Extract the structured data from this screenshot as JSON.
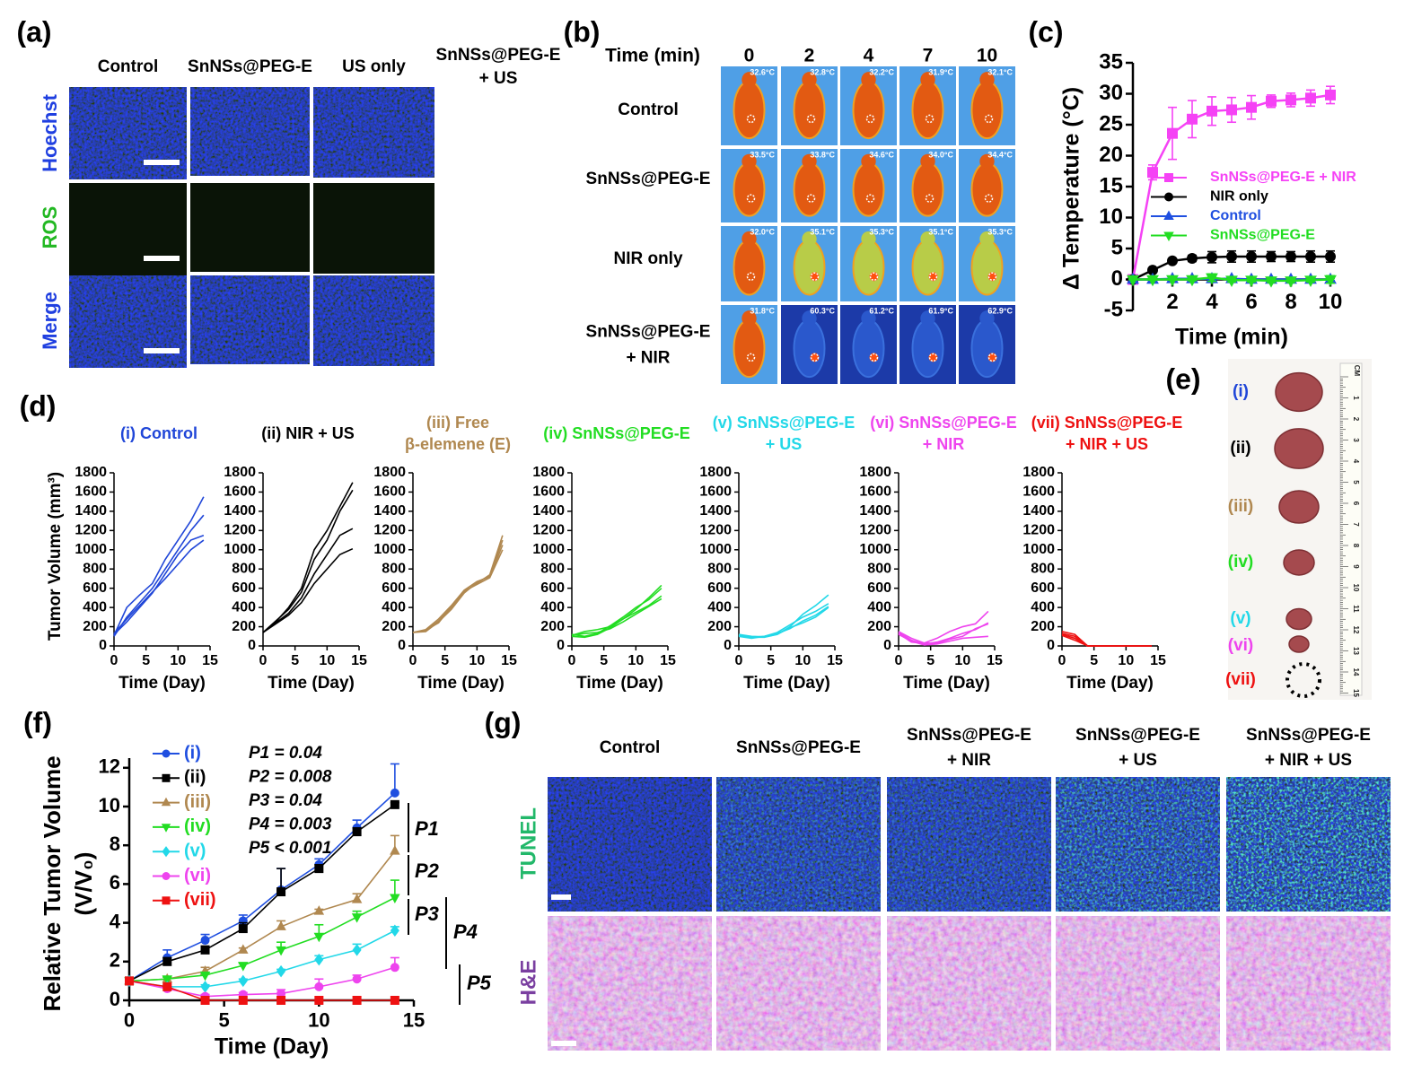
{
  "panel_labels": [
    "(a)",
    "(b)",
    "(c)",
    "(d)",
    "(e)",
    "(f)",
    "(g)"
  ],
  "panel_a": {
    "columns": [
      [
        "Control"
      ],
      [
        "SnNSs@PEG-E"
      ],
      [
        "US only"
      ],
      [
        "SnNSs@PEG-E",
        "+ US"
      ]
    ],
    "rows": [
      "Hoechst",
      "ROS",
      "Merge"
    ]
  },
  "panel_b": {
    "time_header": "Time (min)",
    "times": [
      "0",
      "2",
      "4",
      "7",
      "10"
    ],
    "rows": [
      [
        "Control"
      ],
      [
        "SnNSs@PEG-E"
      ],
      [
        "NIR only"
      ],
      [
        "SnNSs@PEG-E",
        "+ NIR"
      ]
    ],
    "temperatures": [
      [
        "32.6°C",
        "32.8°C",
        "32.2°C",
        "31.9°C",
        "32.1°C"
      ],
      [
        "33.5°C",
        "33.8°C",
        "34.6°C",
        "34.0°C",
        "34.4°C"
      ],
      [
        "32.0°C",
        "35.1°C",
        "35.3°C",
        "35.1°C",
        "35.3°C"
      ],
      [
        "31.8°C",
        "60.3°C",
        "61.2°C",
        "61.9°C",
        "62.9°C"
      ]
    ]
  },
  "panel_e": {
    "groups": [
      {
        "label": "(i)",
        "color": "#2046d8"
      },
      {
        "label": "(ii)",
        "color": "#000000"
      },
      {
        "label": "(iii)",
        "color": "#b08850"
      },
      {
        "label": "(iv)",
        "color": "#22dd22"
      },
      {
        "label": "(v)",
        "color": "#22d8e8"
      },
      {
        "label": "(vi)",
        "color": "#ee44ee"
      },
      {
        "label": "(vii)",
        "color": "#ee1111"
      }
    ],
    "ruler_unit": "CM",
    "ruler_marks": [
      "1",
      "2",
      "3",
      "4",
      "5",
      "6",
      "7",
      "8",
      "9",
      "10",
      "11",
      "12",
      "13",
      "14",
      "15"
    ]
  },
  "panel_g": {
    "columns": [
      [
        "Control"
      ],
      [
        "SnNSs@PEG-E"
      ],
      [
        "SnNSs@PEG-E",
        "+ NIR"
      ],
      [
        "SnNSs@PEG-E",
        "+ US"
      ],
      [
        "SnNSs@PEG-E",
        "+ NIR + US"
      ]
    ],
    "rows": [
      "TUNEL",
      "H&E"
    ]
  },
  "chart_data": [
    {
      "type": "line",
      "xlabel": "Time (min)",
      "ylabel": [
        "Δ Temperature (°C)"
      ],
      "x": [
        0,
        1,
        2,
        3,
        4,
        5,
        6,
        7,
        8,
        9,
        10
      ],
      "xlim": [
        0,
        10
      ],
      "xticks": [
        2,
        4,
        6,
        8,
        10
      ],
      "ylim": [
        -5,
        35
      ],
      "yticks": [
        -5,
        0,
        5,
        10,
        15,
        20,
        25,
        30,
        35
      ],
      "legend": "right",
      "error_bars": "both",
      "series": [
        {
          "name": "SnNSs@PEG-E + NIR",
          "color": "#f542f5",
          "marker": "square",
          "values": [
            0,
            17.3,
            23.6,
            25.9,
            27.2,
            27.4,
            27.8,
            28.8,
            29.0,
            29.3,
            29.8
          ],
          "errors": [
            0,
            1.2,
            4.2,
            3.0,
            2.3,
            2.0,
            1.9,
            1.0,
            1.1,
            1.3,
            1.4
          ]
        },
        {
          "name": "NIR only",
          "color": "#000000",
          "marker": "circle",
          "values": [
            0,
            1.5,
            3.0,
            3.4,
            3.6,
            3.7,
            3.7,
            3.7,
            3.7,
            3.7,
            3.7
          ],
          "errors": [
            0,
            0.2,
            0.3,
            0.5,
            0.9,
            0.9,
            0.9,
            0.8,
            0.8,
            0.9,
            0.9
          ]
        },
        {
          "name": "Control",
          "color": "#1f4fe0",
          "marker": "triangle",
          "values": [
            0,
            0,
            0.1,
            0.1,
            0.1,
            0.1,
            0,
            0,
            0,
            0,
            0
          ],
          "errors": [
            0,
            0.2,
            0.2,
            0.2,
            0.2,
            0.2,
            0.2,
            0.2,
            0.2,
            0.2,
            0.2
          ]
        },
        {
          "name": "SnNSs@PEG-E",
          "color": "#22dd22",
          "marker": "triangle-down",
          "values": [
            0,
            0,
            0,
            0,
            0.3,
            -0.1,
            -0.1,
            -0.2,
            -0.2,
            -0.1,
            0
          ],
          "errors": [
            0,
            0.1,
            0.1,
            0.2,
            0.6,
            0.3,
            0.3,
            0.3,
            0.3,
            0.3,
            0.6
          ]
        }
      ]
    },
    {
      "type": "line",
      "title": [
        "(i) Control"
      ],
      "color": "#2046d8",
      "xlabel": "Time (Day)",
      "ylabel": [
        "Tumor Volume (mm³)"
      ],
      "x": [
        0,
        2,
        4,
        6,
        8,
        10,
        12,
        14
      ],
      "xlim": [
        0,
        15
      ],
      "xticks": [
        0,
        5,
        10,
        15
      ],
      "ylim": [
        0,
        1800
      ],
      "yticks": [
        0,
        200,
        400,
        600,
        800,
        1000,
        1200,
        1400,
        1600,
        1800
      ],
      "series": [
        {
          "values": [
            110,
            400,
            530,
            650,
            900,
            1100,
            1300,
            1550
          ]
        },
        {
          "values": [
            100,
            300,
            450,
            600,
            800,
            1000,
            1200,
            1360
          ]
        },
        {
          "values": [
            120,
            250,
            400,
            550,
            750,
            950,
            1100,
            1150
          ]
        },
        {
          "values": [
            130,
            280,
            420,
            560,
            700,
            850,
            1000,
            1100
          ]
        }
      ]
    },
    {
      "type": "line",
      "title": [
        "(ii) NIR + US"
      ],
      "color": "#000000",
      "xlabel": "Time (Day)",
      "x": [
        0,
        2,
        4,
        6,
        8,
        10,
        12,
        14
      ],
      "xlim": [
        0,
        15
      ],
      "xticks": [
        0,
        5,
        10,
        15
      ],
      "ylim": [
        0,
        1800
      ],
      "yticks": [
        0,
        200,
        400,
        600,
        800,
        1000,
        1200,
        1400,
        1600,
        1800
      ],
      "series": [
        {
          "values": [
            140,
            250,
            400,
            600,
            1000,
            1200,
            1450,
            1700
          ]
        },
        {
          "values": [
            140,
            260,
            380,
            560,
            900,
            1100,
            1400,
            1620
          ]
        },
        {
          "values": [
            140,
            240,
            340,
            500,
            750,
            950,
            1150,
            1220
          ]
        },
        {
          "values": [
            140,
            230,
            320,
            450,
            650,
            800,
            950,
            1010
          ]
        }
      ]
    },
    {
      "type": "line",
      "title": [
        "(iii) Free",
        "β-elemene (E)"
      ],
      "color": "#b08850",
      "xlabel": "Time (Day)",
      "x": [
        0,
        2,
        4,
        6,
        8,
        10,
        12,
        14
      ],
      "xlim": [
        0,
        15
      ],
      "xticks": [
        0,
        5,
        10,
        15
      ],
      "ylim": [
        0,
        1800
      ],
      "yticks": [
        0,
        200,
        400,
        600,
        800,
        1000,
        1200,
        1400,
        1600,
        1800
      ],
      "series": [
        {
          "values": [
            140,
            160,
            260,
            400,
            560,
            650,
            740,
            1150
          ]
        },
        {
          "values": [
            140,
            170,
            280,
            420,
            580,
            670,
            720,
            1050
          ]
        },
        {
          "values": [
            140,
            150,
            250,
            380,
            550,
            660,
            730,
            1100
          ]
        },
        {
          "values": [
            140,
            165,
            240,
            410,
            570,
            640,
            710,
            1000
          ]
        }
      ]
    },
    {
      "type": "line",
      "title": [
        "(iv) SnNSs@PEG-E"
      ],
      "color": "#22dd22",
      "xlabel": "Time (Day)",
      "x": [
        0,
        2,
        4,
        6,
        8,
        10,
        12,
        14
      ],
      "xlim": [
        0,
        15
      ],
      "xticks": [
        0,
        5,
        10,
        15
      ],
      "ylim": [
        0,
        1800
      ],
      "yticks": [
        0,
        200,
        400,
        600,
        800,
        1000,
        1200,
        1400,
        1600,
        1800
      ],
      "series": [
        {
          "values": [
            110,
            150,
            170,
            200,
            280,
            380,
            500,
            630
          ]
        },
        {
          "values": [
            120,
            100,
            130,
            210,
            300,
            400,
            480,
            600
          ]
        },
        {
          "values": [
            100,
            90,
            120,
            190,
            280,
            350,
            420,
            520
          ]
        },
        {
          "values": [
            110,
            130,
            140,
            180,
            250,
            330,
            410,
            490
          ]
        }
      ]
    },
    {
      "type": "line",
      "title": [
        "(v) SnNSs@PEG-E",
        "+ US"
      ],
      "color": "#22d8e8",
      "xlabel": "Time (Day)",
      "x": [
        0,
        2,
        4,
        6,
        8,
        10,
        12,
        14
      ],
      "xlim": [
        0,
        15
      ],
      "xticks": [
        0,
        5,
        10,
        15
      ],
      "ylim": [
        0,
        1800
      ],
      "yticks": [
        0,
        200,
        400,
        600,
        800,
        1000,
        1200,
        1400,
        1600,
        1800
      ],
      "series": [
        {
          "values": [
            110,
            90,
            90,
            120,
            200,
            330,
            420,
            530
          ]
        },
        {
          "values": [
            100,
            80,
            100,
            140,
            220,
            300,
            360,
            440
          ]
        },
        {
          "values": [
            110,
            90,
            100,
            130,
            180,
            260,
            320,
            410
          ]
        },
        {
          "values": [
            120,
            100,
            95,
            120,
            190,
            240,
            300,
            400
          ]
        }
      ]
    },
    {
      "type": "line",
      "title": [
        "(vi) SnNSs@PEG-E",
        "+ NIR"
      ],
      "color": "#ee44ee",
      "xlabel": "Time (Day)",
      "x": [
        0,
        2,
        4,
        6,
        8,
        10,
        12,
        14
      ],
      "xlim": [
        0,
        15
      ],
      "xticks": [
        0,
        5,
        10,
        15
      ],
      "ylim": [
        0,
        1800
      ],
      "yticks": [
        0,
        200,
        400,
        600,
        800,
        1000,
        1200,
        1400,
        1600,
        1800
      ],
      "series": [
        {
          "values": [
            150,
            80,
            30,
            80,
            150,
            200,
            230,
            360
          ]
        },
        {
          "values": [
            140,
            60,
            20,
            40,
            80,
            130,
            170,
            240
          ]
        },
        {
          "values": [
            130,
            40,
            30,
            30,
            70,
            100,
            180,
            230
          ]
        },
        {
          "values": [
            120,
            50,
            10,
            20,
            50,
            80,
            90,
            100
          ]
        }
      ]
    },
    {
      "type": "line",
      "title": [
        "(vii) SnNSs@PEG-E",
        "+ NIR + US"
      ],
      "color": "#ee1111",
      "xlabel": "Time (Day)",
      "x": [
        0,
        2,
        4,
        6,
        8,
        10,
        12,
        14
      ],
      "xlim": [
        0,
        15
      ],
      "xticks": [
        0,
        5,
        10,
        15
      ],
      "ylim": [
        0,
        1800
      ],
      "yticks": [
        0,
        200,
        400,
        600,
        800,
        1000,
        1200,
        1400,
        1600,
        1800
      ],
      "series": [
        {
          "values": [
            150,
            120,
            0,
            0,
            0,
            0,
            0,
            0
          ]
        },
        {
          "values": [
            130,
            100,
            0,
            0,
            0,
            0,
            0,
            0
          ]
        },
        {
          "values": [
            120,
            80,
            0,
            0,
            0,
            0,
            0,
            0
          ]
        },
        {
          "values": [
            110,
            60,
            0,
            0,
            0,
            0,
            0,
            0
          ]
        }
      ]
    },
    {
      "type": "line",
      "xlabel": "Time (Day)",
      "ylabel": [
        "Relative Tumor Volume",
        "(V/V₀)"
      ],
      "x": [
        0,
        2,
        4,
        6,
        8,
        10,
        12,
        14
      ],
      "xlim": [
        0,
        15
      ],
      "xticks": [
        0,
        5,
        10,
        15
      ],
      "ylim": [
        0,
        12.5
      ],
      "yticks": [
        0,
        2,
        4,
        6,
        8,
        10,
        12
      ],
      "legend": "upper left",
      "error_bars": "upper",
      "annotations": [
        "P1 = 0.04",
        "P2 = 0.008",
        "P3 = 0.04",
        "P4 = 0.003",
        "P5 < 0.001"
      ],
      "brackets": [
        "P1",
        "P2",
        "P3",
        "P4",
        "P5"
      ],
      "series": [
        {
          "name": "(i)",
          "color": "#1f4fe0",
          "marker": "circle",
          "values": [
            1,
            2.2,
            3.1,
            4.1,
            5.7,
            7.0,
            8.9,
            10.7
          ],
          "errors": [
            0,
            0.4,
            0.3,
            0.3,
            1.1,
            0.3,
            0.4,
            1.5
          ]
        },
        {
          "name": "(ii)",
          "color": "#000000",
          "marker": "square",
          "values": [
            1,
            2.0,
            2.6,
            3.7,
            5.6,
            6.8,
            8.7,
            10.1
          ],
          "errors": [
            0,
            0.2,
            0.2,
            0.3,
            1.2,
            0.2,
            0.2,
            0.1
          ]
        },
        {
          "name": "(iii)",
          "color": "#b08850",
          "marker": "triangle",
          "values": [
            1,
            1.1,
            1.5,
            2.6,
            3.8,
            4.6,
            5.2,
            7.7
          ],
          "errors": [
            0,
            0.1,
            0.2,
            0.1,
            0.3,
            0.1,
            0.3,
            0.8
          ]
        },
        {
          "name": "(iv)",
          "color": "#22dd22",
          "marker": "triangle-down",
          "values": [
            1,
            1.1,
            1.3,
            1.8,
            2.6,
            3.3,
            4.3,
            5.3
          ],
          "errors": [
            0,
            0.1,
            0.1,
            0.1,
            0.4,
            0.6,
            0.3,
            0.9
          ]
        },
        {
          "name": "(v)",
          "color": "#22d8e8",
          "marker": "diamond",
          "values": [
            1,
            0.7,
            0.7,
            1.0,
            1.5,
            2.1,
            2.6,
            3.6
          ],
          "errors": [
            0,
            0.1,
            0.1,
            0.1,
            0.1,
            0.2,
            0.3,
            0.2
          ]
        },
        {
          "name": "(vi)",
          "color": "#ee44ee",
          "marker": "circle",
          "values": [
            1,
            0.6,
            0.2,
            0.3,
            0.35,
            0.7,
            1.1,
            1.7
          ],
          "errors": [
            0,
            0.1,
            0.1,
            0.1,
            0.2,
            0.4,
            0.2,
            0.5
          ]
        },
        {
          "name": "(vii)",
          "color": "#ee1111",
          "marker": "square",
          "values": [
            1,
            0.7,
            0,
            0,
            0,
            0,
            0,
            0
          ],
          "errors": [
            0,
            0,
            0,
            0,
            0,
            0,
            0,
            0
          ]
        }
      ]
    }
  ]
}
